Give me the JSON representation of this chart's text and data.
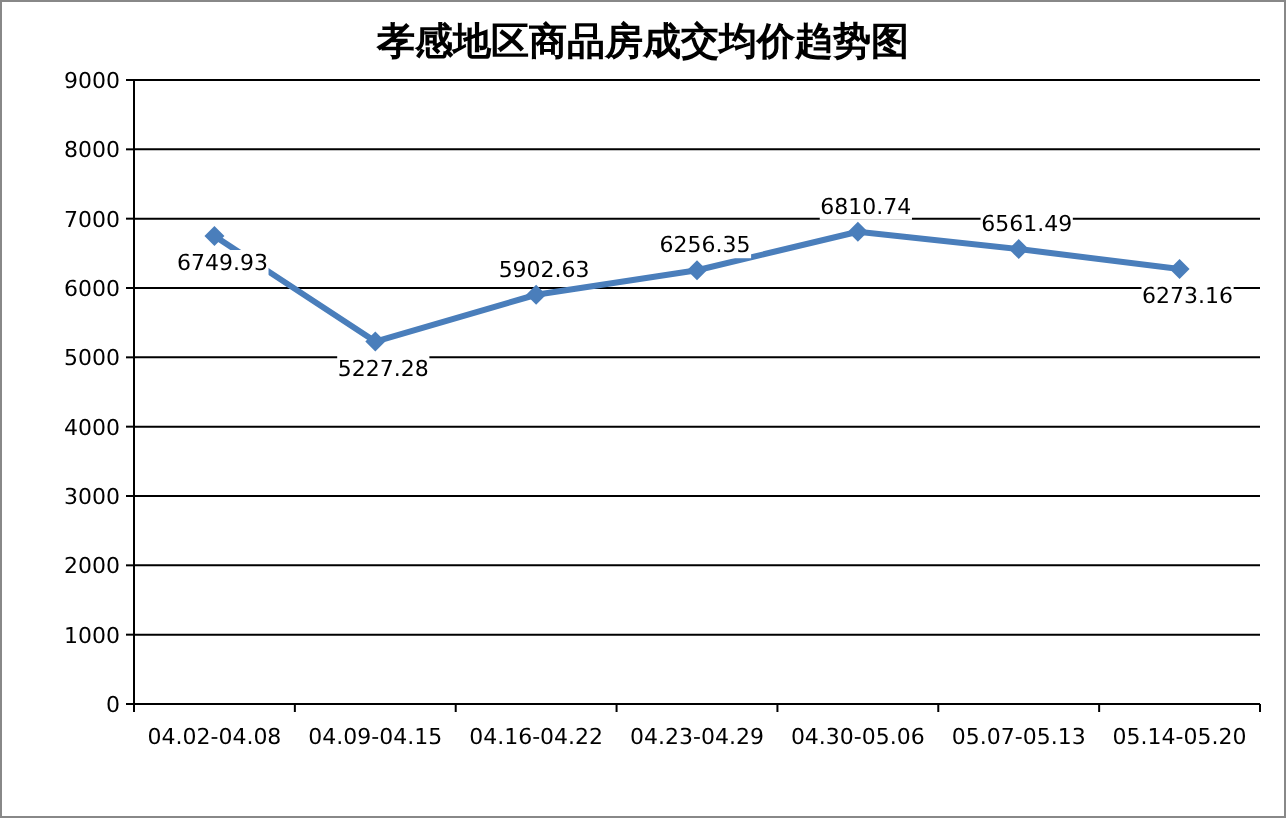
{
  "chart_data": {
    "type": "line",
    "title": "孝感地区商品房成交均价趋势图",
    "categories": [
      "04.02-04.08",
      "04.09-04.15",
      "04.16-04.22",
      "04.23-04.29",
      "04.30-05.06",
      "05.07-05.13",
      "05.14-05.20"
    ],
    "values": [
      6749.93,
      5227.28,
      5902.63,
      6256.35,
      6810.74,
      6561.49,
      6273.16
    ],
    "color": "#4a7ebb",
    "ylim": [
      0,
      9000
    ],
    "yticks": [
      0,
      1000,
      2000,
      3000,
      4000,
      5000,
      6000,
      7000,
      8000,
      9000
    ],
    "grid": "y",
    "marker": "diamond",
    "line_style": "solid",
    "data_labels": true
  }
}
